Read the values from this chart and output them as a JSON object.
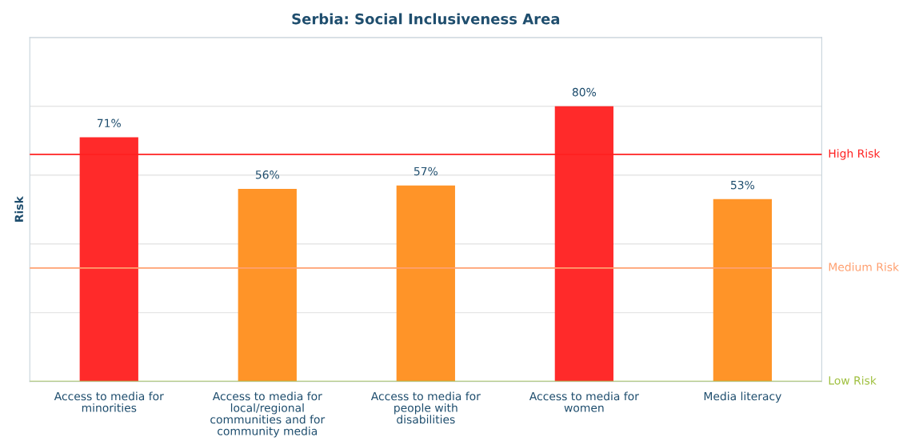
{
  "chart_data": {
    "type": "bar",
    "title": "Serbia: Social Inclusiveness Area",
    "ylabel": "Risk",
    "categories": [
      "Access to media for minorities",
      "Access to media for local/regional communities and for community media",
      "Access to media for people with disabilities",
      "Access to media for women",
      "Media literacy"
    ],
    "values": [
      71,
      56,
      57,
      80,
      53
    ],
    "colors": [
      "#ff2a2a",
      "#ff9428",
      "#ff9428",
      "#ff2a2a",
      "#ff9428"
    ],
    "value_labels": [
      "71%",
      "56%",
      "57%",
      "80%",
      "53%"
    ],
    "ylim": [
      0,
      100
    ],
    "yticks": [
      {
        "value": 20,
        "label": null
      },
      {
        "value": 40,
        "label": null
      },
      {
        "value": 60,
        "label": null
      },
      {
        "value": 80,
        "label": null
      },
      {
        "value": 100,
        "label": null
      }
    ],
    "tick_labels": "x",
    "grid": "y",
    "legend": false,
    "ref_lines": [
      {
        "axis": "y",
        "value": 66,
        "label": "High Risk",
        "color": "#ff2020"
      },
      {
        "axis": "y",
        "value": 33,
        "label": "Medium Risk",
        "color": "#ffa070"
      },
      {
        "axis": "y",
        "value": 0,
        "label": "Low Risk",
        "color": "#a0c040"
      }
    ]
  }
}
